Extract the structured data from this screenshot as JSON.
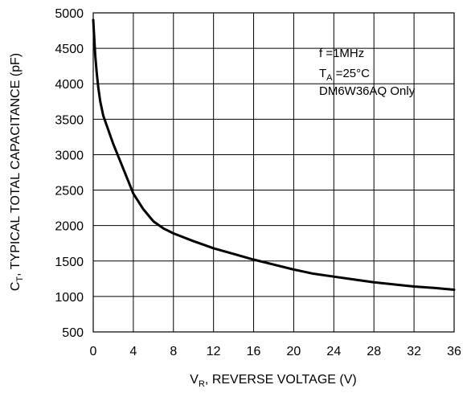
{
  "chart_data": {
    "type": "line",
    "title": "",
    "xlabel": {
      "main": "V",
      "sub": "R",
      "rest": ", REVERSE VOLTAGE (V)"
    },
    "ylabel": {
      "main": "C",
      "sub": "T",
      "rest": ", TYPICAL TOTAL CAPACITANCE (pF)"
    },
    "xlim": [
      0,
      36
    ],
    "ylim": [
      500,
      5000
    ],
    "xticks": [
      "0",
      "4",
      "8",
      "12",
      "16",
      "20",
      "24",
      "28",
      "32",
      "36"
    ],
    "yticks": [
      "500",
      "1000",
      "1500",
      "2000",
      "2500",
      "3000",
      "3500",
      "4000",
      "4500",
      "5000"
    ],
    "xtick_values": [
      0,
      4,
      8,
      12,
      16,
      20,
      24,
      28,
      32,
      36
    ],
    "ytick_values": [
      500,
      1000,
      1500,
      2000,
      2500,
      3000,
      3500,
      4000,
      4500,
      5000
    ],
    "grid": true,
    "annotations": {
      "line1": "f =1MHz",
      "line2_main": "T",
      "line2_sub": "A",
      "line2_rest": " =25°C",
      "line3": "DM6W36AQ Only"
    },
    "series": [
      {
        "color": "#000000",
        "x": [
          0,
          0.1,
          0.2,
          0.35,
          0.5,
          0.7,
          0.85,
          1.0,
          1.5,
          2.0,
          3.0,
          4.0,
          5.0,
          6.0,
          7.0,
          8.0,
          10.0,
          12.0,
          14.0,
          16.0,
          18.0,
          20.0,
          22.0,
          24.0,
          26.0,
          28.0,
          30.0,
          32.0,
          34.0,
          36.0
        ],
        "y": [
          4900,
          4650,
          4400,
          4150,
          3950,
          3750,
          3650,
          3550,
          3350,
          3150,
          2800,
          2450,
          2230,
          2060,
          1960,
          1890,
          1780,
          1680,
          1600,
          1520,
          1450,
          1380,
          1320,
          1280,
          1240,
          1200,
          1170,
          1140,
          1120,
          1095
        ]
      }
    ]
  }
}
